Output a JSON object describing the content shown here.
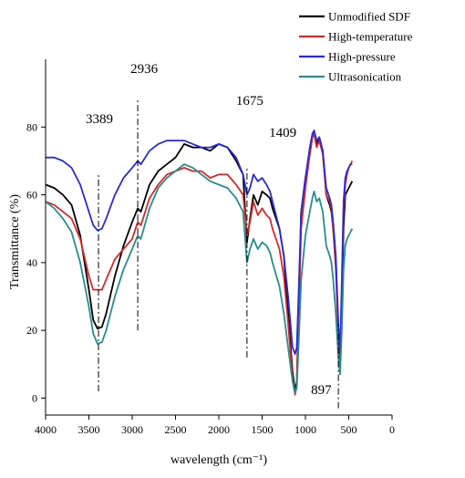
{
  "chart_data": {
    "type": "line",
    "xlabel": "wavelength (cm⁻¹)",
    "ylabel": "Transmittance (%)",
    "xlim": [
      4000,
      0
    ],
    "ylim": [
      -5,
      100
    ],
    "x_ticks": [
      4000,
      3500,
      3000,
      2500,
      2000,
      1500,
      1000,
      500,
      0
    ],
    "y_ticks": [
      0,
      20,
      40,
      60,
      80
    ],
    "grid": false,
    "legend": "top-right",
    "series": [
      {
        "name": "Unmodified SDF",
        "color": "#000000",
        "points": [
          [
            4000,
            63
          ],
          [
            3900,
            62
          ],
          [
            3800,
            60
          ],
          [
            3700,
            57
          ],
          [
            3600,
            48
          ],
          [
            3500,
            32
          ],
          [
            3450,
            23
          ],
          [
            3400,
            20.5
          ],
          [
            3350,
            21
          ],
          [
            3300,
            25
          ],
          [
            3200,
            36
          ],
          [
            3100,
            45
          ],
          [
            3000,
            52
          ],
          [
            2936,
            56
          ],
          [
            2900,
            55
          ],
          [
            2800,
            63
          ],
          [
            2700,
            67
          ],
          [
            2600,
            69
          ],
          [
            2500,
            71
          ],
          [
            2400,
            75
          ],
          [
            2300,
            74
          ],
          [
            2200,
            74
          ],
          [
            2100,
            73
          ],
          [
            2000,
            75
          ],
          [
            1900,
            74
          ],
          [
            1800,
            70
          ],
          [
            1720,
            66
          ],
          [
            1675,
            46
          ],
          [
            1640,
            53
          ],
          [
            1600,
            60
          ],
          [
            1550,
            57
          ],
          [
            1500,
            61
          ],
          [
            1450,
            60
          ],
          [
            1409,
            59
          ],
          [
            1380,
            56
          ],
          [
            1300,
            50
          ],
          [
            1250,
            42
          ],
          [
            1200,
            25
          ],
          [
            1150,
            8
          ],
          [
            1120,
            2
          ],
          [
            1100,
            5
          ],
          [
            1080,
            25
          ],
          [
            1050,
            55
          ],
          [
            1000,
            65
          ],
          [
            950,
            72
          ],
          [
            920,
            77
          ],
          [
            900,
            78
          ],
          [
            870,
            75
          ],
          [
            840,
            77
          ],
          [
            800,
            73
          ],
          [
            760,
            60
          ],
          [
            720,
            57
          ],
          [
            700,
            55
          ],
          [
            680,
            50
          ],
          [
            650,
            40
          ],
          [
            620,
            20
          ],
          [
            600,
            12
          ],
          [
            580,
            28
          ],
          [
            560,
            50
          ],
          [
            540,
            60
          ],
          [
            520,
            61
          ],
          [
            500,
            62
          ],
          [
            480,
            63
          ],
          [
            460,
            64
          ]
        ]
      },
      {
        "name": "High-temperature",
        "color": "#d42a2a",
        "points": [
          [
            4000,
            58
          ],
          [
            3900,
            57
          ],
          [
            3800,
            55
          ],
          [
            3700,
            53
          ],
          [
            3600,
            47
          ],
          [
            3500,
            36
          ],
          [
            3450,
            32
          ],
          [
            3400,
            32
          ],
          [
            3350,
            32
          ],
          [
            3300,
            35
          ],
          [
            3200,
            41
          ],
          [
            3100,
            44
          ],
          [
            3000,
            47
          ],
          [
            2936,
            52
          ],
          [
            2900,
            51
          ],
          [
            2800,
            59
          ],
          [
            2700,
            63
          ],
          [
            2600,
            66
          ],
          [
            2500,
            67
          ],
          [
            2400,
            68
          ],
          [
            2300,
            67
          ],
          [
            2200,
            67
          ],
          [
            2100,
            65
          ],
          [
            2000,
            66
          ],
          [
            1900,
            66
          ],
          [
            1800,
            63
          ],
          [
            1720,
            60
          ],
          [
            1675,
            48
          ],
          [
            1640,
            52
          ],
          [
            1600,
            58
          ],
          [
            1550,
            54
          ],
          [
            1500,
            56
          ],
          [
            1450,
            54
          ],
          [
            1409,
            53
          ],
          [
            1380,
            50
          ],
          [
            1300,
            44
          ],
          [
            1250,
            36
          ],
          [
            1200,
            22
          ],
          [
            1150,
            6
          ],
          [
            1120,
            1
          ],
          [
            1100,
            4
          ],
          [
            1080,
            22
          ],
          [
            1050,
            50
          ],
          [
            1000,
            62
          ],
          [
            950,
            72
          ],
          [
            920,
            77
          ],
          [
            900,
            78
          ],
          [
            870,
            74
          ],
          [
            840,
            76
          ],
          [
            800,
            72
          ],
          [
            760,
            60
          ],
          [
            720,
            58
          ],
          [
            700,
            56
          ],
          [
            680,
            50
          ],
          [
            650,
            38
          ],
          [
            620,
            18
          ],
          [
            600,
            10
          ],
          [
            580,
            30
          ],
          [
            560,
            55
          ],
          [
            540,
            63
          ],
          [
            520,
            66
          ],
          [
            500,
            68
          ],
          [
            480,
            69
          ],
          [
            460,
            70
          ]
        ]
      },
      {
        "name": "High-pressure",
        "color": "#2a2ad4",
        "points": [
          [
            4000,
            71
          ],
          [
            3900,
            71
          ],
          [
            3800,
            70
          ],
          [
            3700,
            68
          ],
          [
            3600,
            63
          ],
          [
            3500,
            55
          ],
          [
            3450,
            51
          ],
          [
            3400,
            49.5
          ],
          [
            3350,
            50
          ],
          [
            3300,
            53
          ],
          [
            3200,
            60
          ],
          [
            3100,
            65
          ],
          [
            3000,
            68
          ],
          [
            2936,
            70
          ],
          [
            2900,
            69
          ],
          [
            2800,
            73
          ],
          [
            2700,
            75
          ],
          [
            2600,
            76
          ],
          [
            2500,
            76
          ],
          [
            2400,
            76
          ],
          [
            2300,
            75
          ],
          [
            2200,
            74
          ],
          [
            2100,
            74
          ],
          [
            2000,
            75
          ],
          [
            1900,
            74
          ],
          [
            1800,
            71
          ],
          [
            1720,
            66
          ],
          [
            1675,
            60
          ],
          [
            1640,
            62
          ],
          [
            1600,
            66
          ],
          [
            1550,
            64
          ],
          [
            1500,
            65
          ],
          [
            1450,
            63
          ],
          [
            1409,
            61
          ],
          [
            1380,
            58
          ],
          [
            1300,
            50
          ],
          [
            1250,
            42
          ],
          [
            1200,
            30
          ],
          [
            1150,
            15
          ],
          [
            1120,
            13
          ],
          [
            1100,
            15
          ],
          [
            1080,
            30
          ],
          [
            1050,
            55
          ],
          [
            1000,
            65
          ],
          [
            950,
            74
          ],
          [
            920,
            78
          ],
          [
            900,
            79
          ],
          [
            870,
            76
          ],
          [
            840,
            77
          ],
          [
            800,
            73
          ],
          [
            760,
            62
          ],
          [
            720,
            59
          ],
          [
            700,
            57
          ],
          [
            680,
            52
          ],
          [
            650,
            42
          ],
          [
            620,
            22
          ],
          [
            600,
            13
          ],
          [
            580,
            35
          ],
          [
            560,
            58
          ],
          [
            540,
            65
          ],
          [
            520,
            67
          ],
          [
            500,
            68
          ],
          [
            480,
            69
          ],
          [
            460,
            69
          ]
        ]
      },
      {
        "name": "Ultrasonication",
        "color": "#2a8c8c",
        "points": [
          [
            4000,
            58
          ],
          [
            3900,
            56
          ],
          [
            3800,
            53
          ],
          [
            3700,
            49
          ],
          [
            3600,
            40
          ],
          [
            3500,
            27
          ],
          [
            3450,
            19
          ],
          [
            3400,
            16
          ],
          [
            3350,
            16.5
          ],
          [
            3300,
            20
          ],
          [
            3200,
            30
          ],
          [
            3100,
            38
          ],
          [
            3000,
            44
          ],
          [
            2936,
            48
          ],
          [
            2900,
            47
          ],
          [
            2800,
            56
          ],
          [
            2700,
            62
          ],
          [
            2600,
            65
          ],
          [
            2500,
            67
          ],
          [
            2400,
            69
          ],
          [
            2300,
            68
          ],
          [
            2200,
            66
          ],
          [
            2100,
            64
          ],
          [
            2000,
            63
          ],
          [
            1900,
            62
          ],
          [
            1800,
            59
          ],
          [
            1720,
            55
          ],
          [
            1675,
            40
          ],
          [
            1640,
            44
          ],
          [
            1600,
            47
          ],
          [
            1550,
            44
          ],
          [
            1500,
            46
          ],
          [
            1450,
            45
          ],
          [
            1409,
            43
          ],
          [
            1380,
            40
          ],
          [
            1300,
            33
          ],
          [
            1250,
            25
          ],
          [
            1200,
            15
          ],
          [
            1150,
            5
          ],
          [
            1120,
            1.5
          ],
          [
            1100,
            3
          ],
          [
            1080,
            15
          ],
          [
            1050,
            35
          ],
          [
            1000,
            48
          ],
          [
            950,
            55
          ],
          [
            920,
            59
          ],
          [
            900,
            61
          ],
          [
            870,
            58
          ],
          [
            840,
            59
          ],
          [
            800,
            55
          ],
          [
            760,
            45
          ],
          [
            720,
            42
          ],
          [
            700,
            40
          ],
          [
            680,
            35
          ],
          [
            650,
            25
          ],
          [
            620,
            12
          ],
          [
            600,
            7
          ],
          [
            580,
            20
          ],
          [
            560,
            38
          ],
          [
            540,
            45
          ],
          [
            520,
            47
          ],
          [
            500,
            48
          ],
          [
            480,
            49
          ],
          [
            460,
            50
          ]
        ]
      }
    ],
    "annotations": [
      {
        "label": "3389",
        "x": 3389,
        "line_y": [
          2,
          66
        ]
      },
      {
        "label": "2936",
        "x": 2936,
        "line_y": [
          20,
          88
        ]
      },
      {
        "label": "1675",
        "x": 1675,
        "line_y": [
          12,
          68
        ]
      },
      {
        "label": "1409",
        "x": 1409
      },
      {
        "label": "897",
        "x": 620,
        "line_y": [
          -3,
          22
        ]
      }
    ]
  }
}
